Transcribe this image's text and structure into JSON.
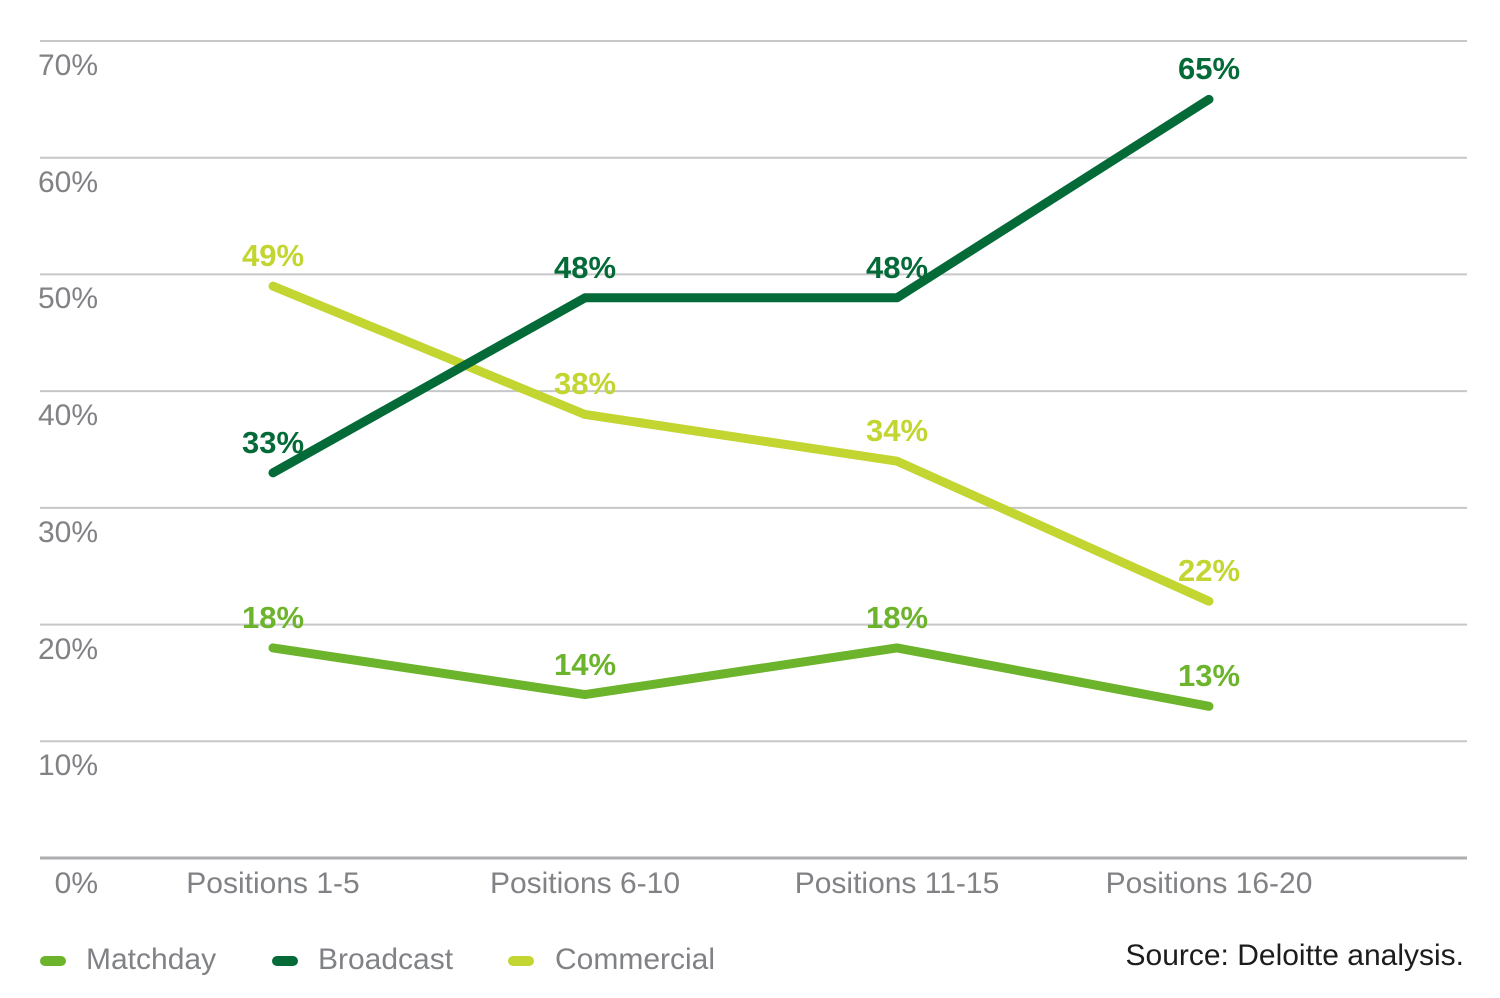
{
  "chart_data": {
    "type": "line",
    "categories": [
      "Positions 1-5",
      "Positions 6-10",
      "Positions 11-15",
      "Positions 16-20"
    ],
    "series": [
      {
        "name": "Matchday",
        "color": "#6CB42C",
        "values": [
          18,
          14,
          18,
          13
        ]
      },
      {
        "name": "Broadcast",
        "color": "#046A38",
        "values": [
          33,
          48,
          48,
          65
        ]
      },
      {
        "name": "Commercial",
        "color": "#C3D531",
        "values": [
          49,
          38,
          34,
          22
        ]
      }
    ],
    "y_axis": {
      "ticks": [
        {
          "label": "70%",
          "value": 70
        },
        {
          "label": "60%",
          "value": 60
        },
        {
          "label": "50%",
          "value": 50
        },
        {
          "label": "40%",
          "value": 40
        },
        {
          "label": "30%",
          "value": 30
        },
        {
          "label": "20%",
          "value": 20
        },
        {
          "label": "10%",
          "value": 10
        },
        {
          "label": "0%",
          "value": 0
        }
      ],
      "min": 0,
      "max": 70,
      "grid": true
    },
    "data_label_suffix": "%",
    "legend": {
      "position": "bottom-left",
      "entries": [
        {
          "label": "Matchday",
          "color": "#6CB42C"
        },
        {
          "label": "Broadcast",
          "color": "#046A38"
        },
        {
          "label": "Commercial",
          "color": "#C3D531"
        }
      ]
    },
    "title": "",
    "xlabel": "",
    "ylabel": ""
  },
  "colors": {
    "grid": "#C6C7C9",
    "axis": "#ACAEB0",
    "tick_text": "#808285",
    "source_text": "#1C1C1C"
  },
  "footer": {
    "source": "Source: Deloitte analysis."
  }
}
